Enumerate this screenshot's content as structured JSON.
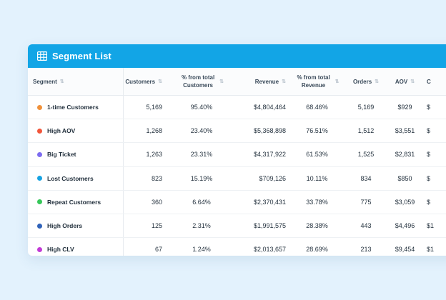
{
  "card": {
    "title": "Segment List",
    "icon": "table-grid-icon"
  },
  "columns": {
    "segment": "Segment",
    "customers": "Customers",
    "pct_customers": "% from total Customers",
    "revenue": "Revenue",
    "pct_revenue": "% from total Revenue",
    "orders": "Orders",
    "aov": "AOV",
    "extra": "C"
  },
  "rows": [
    {
      "name": "1-time Customers",
      "color": "#f0913a",
      "customers": "5,169",
      "pct_customers": "95.40%",
      "revenue": "$4,804,464",
      "pct_revenue": "68.46%",
      "orders": "5,169",
      "aov": "$929",
      "extra": "$"
    },
    {
      "name": "High AOV",
      "color": "#f2553a",
      "customers": "1,268",
      "pct_customers": "23.40%",
      "revenue": "$5,368,898",
      "pct_revenue": "76.51%",
      "orders": "1,512",
      "aov": "$3,551",
      "extra": "$"
    },
    {
      "name": "Big Ticket",
      "color": "#7d6cf0",
      "customers": "1,263",
      "pct_customers": "23.31%",
      "revenue": "$4,317,922",
      "pct_revenue": "61.53%",
      "orders": "1,525",
      "aov": "$2,831",
      "extra": "$"
    },
    {
      "name": "Lost Customers",
      "color": "#16a2e2",
      "customers": "823",
      "pct_customers": "15.19%",
      "revenue": "$709,126",
      "pct_revenue": "10.11%",
      "orders": "834",
      "aov": "$850",
      "extra": "$"
    },
    {
      "name": "Repeat Customers",
      "color": "#36c759",
      "customers": "360",
      "pct_customers": "6.64%",
      "revenue": "$2,370,431",
      "pct_revenue": "33.78%",
      "orders": "775",
      "aov": "$3,059",
      "extra": "$"
    },
    {
      "name": "High Orders",
      "color": "#2f62b9",
      "customers": "125",
      "pct_customers": "2.31%",
      "revenue": "$1,991,575",
      "pct_revenue": "28.38%",
      "orders": "443",
      "aov": "$4,496",
      "extra": "$1"
    },
    {
      "name": "High CLV",
      "color": "#c23ad6",
      "customers": "67",
      "pct_customers": "1.24%",
      "revenue": "$2,013,657",
      "pct_revenue": "28.69%",
      "orders": "213",
      "aov": "$9,454",
      "extra": "$1"
    }
  ],
  "colors": {
    "header_bg": "#12a5e6",
    "page_bg": "#e3f2fd"
  }
}
